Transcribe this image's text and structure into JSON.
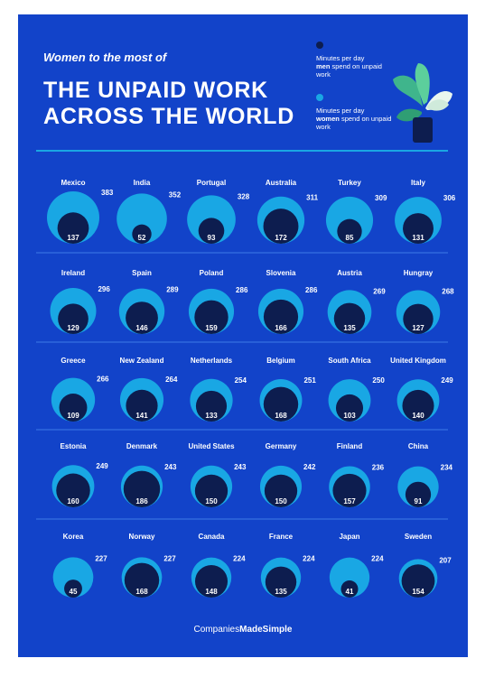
{
  "header": {
    "subtitle": "Women to the most of",
    "title_line1": "THE UNPAID WORK",
    "title_line2": "ACROSS THE WORLD"
  },
  "legend": {
    "men": {
      "pre": "Minutes per day",
      "bold": "men",
      "post": "spend on unpaid work",
      "color": "#0d1d4f"
    },
    "women": {
      "pre": "Minutes per day",
      "bold": "women",
      "post": "spend on unpaid work",
      "color": "#19a7e4"
    }
  },
  "footer": {
    "brand_light": "Companies",
    "brand_bold": "MadeSimple"
  },
  "colors": {
    "background": "#1243c9",
    "women": "#19a7e4",
    "men": "#0d1d4f",
    "divider": "#3f7be8"
  },
  "chart_data": {
    "type": "bubble",
    "series": [
      {
        "name": "men",
        "key": "men"
      },
      {
        "name": "women",
        "key": "women"
      }
    ],
    "countries": [
      {
        "name": "Mexico",
        "women": 383,
        "men": 137
      },
      {
        "name": "India",
        "women": 352,
        "men": 52
      },
      {
        "name": "Portugal",
        "women": 328,
        "men": 93
      },
      {
        "name": "Australia",
        "women": 311,
        "men": 172
      },
      {
        "name": "Turkey",
        "women": 309,
        "men": 85
      },
      {
        "name": "Italy",
        "women": 306,
        "men": 131
      },
      {
        "name": "Ireland",
        "women": 296,
        "men": 129
      },
      {
        "name": "Spain",
        "women": 289,
        "men": 146
      },
      {
        "name": "Poland",
        "women": 286,
        "men": 159
      },
      {
        "name": "Slovenia",
        "women": 286,
        "men": 166
      },
      {
        "name": "Austria",
        "women": 269,
        "men": 135
      },
      {
        "name": "Hungray",
        "women": 268,
        "men": 127
      },
      {
        "name": "Greece",
        "women": 266,
        "men": 109
      },
      {
        "name": "New Zealand",
        "women": 264,
        "men": 141
      },
      {
        "name": "Netherlands",
        "women": 254,
        "men": 133
      },
      {
        "name": "Belgium",
        "women": 251,
        "men": 168
      },
      {
        "name": "South Africa",
        "women": 250,
        "men": 103
      },
      {
        "name": "United Kingdom",
        "women": 249,
        "men": 140
      },
      {
        "name": "Estonia",
        "women": 249,
        "men": 160
      },
      {
        "name": "Denmark",
        "women": 243,
        "men": 186
      },
      {
        "name": "United States",
        "women": 243,
        "men": 150
      },
      {
        "name": "Germany",
        "women": 242,
        "men": 150
      },
      {
        "name": "Finland",
        "women": 236,
        "men": 157
      },
      {
        "name": "China",
        "women": 234,
        "men": 91
      },
      {
        "name": "Korea",
        "women": 227,
        "men": 45
      },
      {
        "name": "Norway",
        "women": 227,
        "men": 168
      },
      {
        "name": "Canada",
        "women": 224,
        "men": 148
      },
      {
        "name": "France",
        "women": 224,
        "men": 135
      },
      {
        "name": "Japan",
        "women": 224,
        "men": 41
      },
      {
        "name": "Sweden",
        "women": 207,
        "men": 154
      }
    ]
  }
}
